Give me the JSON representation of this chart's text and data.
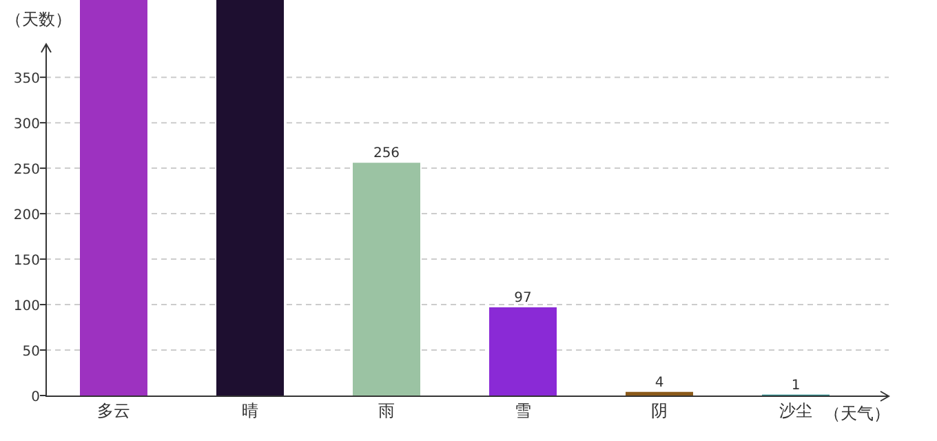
{
  "chart_data": {
    "type": "bar",
    "xlabel": "（天气）",
    "ylabel": "（天数）",
    "categories": [
      "多云",
      "晴",
      "雨",
      "雪",
      "阴",
      "沙尘"
    ],
    "values": [
      435,
      435,
      256,
      97,
      4,
      1
    ],
    "colors": [
      "#9d32c0",
      "#1e0f30",
      "#9bc3a3",
      "#8a2ad6",
      "#8b5a1a",
      "#2f8f8f"
    ],
    "value_labels": [
      null,
      null,
      "256",
      "97",
      "4",
      "1"
    ],
    "ylim": [
      0,
      435
    ],
    "yticks": [
      0,
      50,
      100,
      150,
      200,
      250,
      300,
      350
    ],
    "grid": "y"
  }
}
